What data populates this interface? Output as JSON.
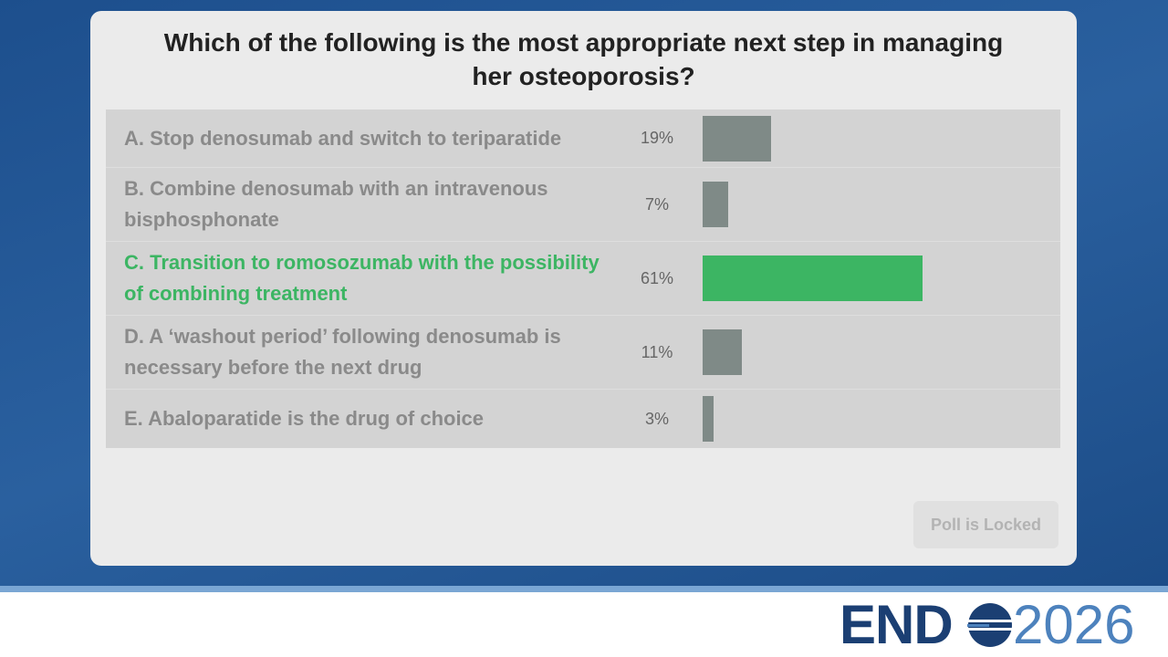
{
  "poll": {
    "question": "Which of the following is the most appropriate next step in managing her osteoporosis?",
    "options": [
      {
        "label": "A. Stop denosumab and switch to teriparatide",
        "percent": 19,
        "percent_label": "19%",
        "color": "#7f8a87"
      },
      {
        "label": "B. Combine denosumab with an intravenous bisphosphonate",
        "percent": 7,
        "percent_label": "7%",
        "color": "#7f8a87"
      },
      {
        "label": "C. Transition to romosozumab with the possibility of combining treatment",
        "percent": 61,
        "percent_label": "61%",
        "color": "#3cb563"
      },
      {
        "label": "D. A ‘washout period’ following denosumab is necessary before the next drug",
        "percent": 11,
        "percent_label": "11%",
        "color": "#7f8a87"
      },
      {
        "label": "E. Abaloparatide is the drug of choice",
        "percent": 3,
        "percent_label": "3%",
        "color": "#7f8a87"
      }
    ],
    "button": "Poll is Locked"
  },
  "logo": {
    "left": "END",
    "right": "2026"
  }
}
